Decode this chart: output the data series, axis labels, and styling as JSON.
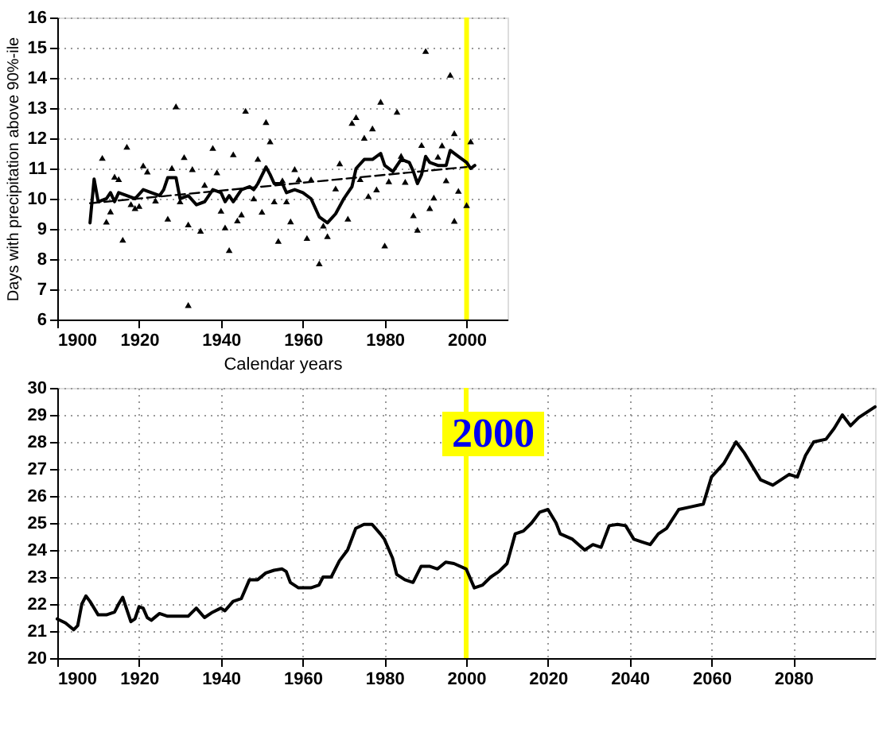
{
  "chart_data": [
    {
      "type": "scatter",
      "xlabel": "Calendar years",
      "ylabel": "Days with precipitation above 90%-ile",
      "xlim": [
        1900,
        2010
      ],
      "ylim": [
        6,
        16
      ],
      "xticks": [
        1900,
        1920,
        1940,
        1960,
        1980,
        2000
      ],
      "yticks": [
        6,
        7,
        8,
        9,
        10,
        11,
        12,
        13,
        14,
        15,
        16
      ],
      "grid": "y",
      "ref_lines": [
        {
          "axis": "x",
          "value": 2000,
          "color": "#ffff00"
        }
      ],
      "series": [
        {
          "marker": "triangle",
          "color": "#000000",
          "x": [
            1911,
            1912,
            1913,
            1914,
            1915,
            1916,
            1917,
            1918,
            1919,
            1920,
            1921,
            1922,
            1924,
            1927,
            1928,
            1929,
            1930,
            1931,
            1932,
            1932,
            1933,
            1935,
            1936,
            1938,
            1939,
            1940,
            1941,
            1942,
            1943,
            1944,
            1945,
            1946,
            1948,
            1949,
            1950,
            1951,
            1952,
            1953,
            1954,
            1955,
            1956,
            1957,
            1958,
            1959,
            1961,
            1962,
            1964,
            1965,
            1966,
            1968,
            1969,
            1971,
            1972,
            1973,
            1974,
            1975,
            1976,
            1977,
            1978,
            1979,
            1980,
            1981,
            1983,
            1984,
            1985,
            1987,
            1988,
            1989,
            1990,
            1991,
            1992,
            1993,
            1994,
            1995,
            1996,
            1997,
            1997,
            1998,
            2000,
            2001
          ],
          "values": [
            11.35,
            9.24,
            9.58,
            10.73,
            10.65,
            8.64,
            11.72,
            9.82,
            9.69,
            9.76,
            11.1,
            10.9,
            9.94,
            9.34,
            11.02,
            13.06,
            9.91,
            11.38,
            6.48,
            9.15,
            10.98,
            8.94,
            10.46,
            11.68,
            10.87,
            9.6,
            9.05,
            8.3,
            11.47,
            9.28,
            9.48,
            12.91,
            10.01,
            11.32,
            9.57,
            12.54,
            11.9,
            9.91,
            8.6,
            10.61,
            9.91,
            9.25,
            10.98,
            10.64,
            8.7,
            10.64,
            7.86,
            9.11,
            8.76,
            10.34,
            11.17,
            9.34,
            12.51,
            12.7,
            10.65,
            12.02,
            10.09,
            12.33,
            10.31,
            13.21,
            8.45,
            10.58,
            12.88,
            11.42,
            10.56,
            9.45,
            8.97,
            11.78,
            14.89,
            9.69,
            10.04,
            11.39,
            11.77,
            10.61,
            14.1,
            9.27,
            12.17,
            10.26,
            9.79,
            11.9
          ]
        },
        {
          "type": "line",
          "marker": "none",
          "line_style": "solid",
          "color": "#000000",
          "x": [
            1908,
            1909,
            1910,
            1912,
            1913,
            1914,
            1915,
            1917,
            1919,
            1921,
            1923,
            1925,
            1926,
            1927,
            1929,
            1930,
            1932,
            1934,
            1936,
            1938,
            1940,
            1941,
            1942,
            1943,
            1945,
            1947,
            1948,
            1949,
            1951,
            1952,
            1953,
            1955,
            1956,
            1958,
            1960,
            1962,
            1964,
            1966,
            1968,
            1970,
            1972,
            1973,
            1975,
            1977,
            1979,
            1980,
            1982,
            1984,
            1986,
            1987,
            1988,
            1989,
            1990,
            1991,
            1993,
            1995,
            1996,
            1998,
            1999,
            2000,
            2001,
            2002
          ],
          "values": [
            9.2,
            10.65,
            9.9,
            10.0,
            10.2,
            9.9,
            10.2,
            10.1,
            10.0,
            10.3,
            10.2,
            10.1,
            10.3,
            10.7,
            10.7,
            10.0,
            10.1,
            9.8,
            9.9,
            10.3,
            10.2,
            9.9,
            10.1,
            9.9,
            10.3,
            10.4,
            10.3,
            10.5,
            11.05,
            10.8,
            10.5,
            10.5,
            10.2,
            10.3,
            10.2,
            10.0,
            9.4,
            9.2,
            9.5,
            10.0,
            10.4,
            11.0,
            11.3,
            11.3,
            11.5,
            11.1,
            10.9,
            11.3,
            11.2,
            10.9,
            10.5,
            10.8,
            11.4,
            11.2,
            11.1,
            11.1,
            11.6,
            11.4,
            11.3,
            11.2,
            11.0,
            11.1
          ]
        },
        {
          "type": "line",
          "marker": "none",
          "line_style": "dashed",
          "color": "#000000",
          "x": [
            1908,
            2000
          ],
          "values": [
            9.85,
            11.05
          ]
        }
      ]
    },
    {
      "type": "line",
      "xlim": [
        1900,
        2100
      ],
      "ylim": [
        20,
        30
      ],
      "xticks": [
        1900,
        1920,
        1940,
        1960,
        1980,
        2000,
        2020,
        2040,
        2060,
        2080
      ],
      "yticks": [
        20,
        21,
        22,
        23,
        24,
        25,
        26,
        27,
        28,
        29,
        30
      ],
      "grid": true,
      "ref_lines": [
        {
          "axis": "x",
          "value": 2000,
          "label": "2000",
          "color": "#ffff00"
        }
      ],
      "series": [
        {
          "marker": "none",
          "line_style": "solid",
          "color": "#000000",
          "x": [
            1900,
            1902,
            1904,
            1905,
            1906,
            1907,
            1908,
            1910,
            1912,
            1914,
            1915,
            1916,
            1917,
            1918,
            1919,
            1920,
            1921,
            1922,
            1923,
            1925,
            1927,
            1930,
            1932,
            1934,
            1936,
            1938,
            1940,
            1941,
            1943,
            1945,
            1947,
            1949,
            1951,
            1953,
            1955,
            1956,
            1957,
            1959,
            1962,
            1964,
            1965,
            1967,
            1969,
            1971,
            1973,
            1975,
            1977,
            1979,
            1980,
            1982,
            1983,
            1985,
            1987,
            1989,
            1991,
            1993,
            1995,
            1997,
            2000,
            2002,
            2004,
            2006,
            2008,
            2010,
            2012,
            2014,
            2016,
            2018,
            2020,
            2022,
            2023,
            2026,
            2029,
            2031,
            2033,
            2035,
            2037,
            2039,
            2041,
            2043,
            2045,
            2047,
            2049,
            2052,
            2055,
            2058,
            2060,
            2063,
            2066,
            2068,
            2070,
            2072,
            2075,
            2077,
            2079,
            2081,
            2083,
            2085,
            2088,
            2090,
            2092,
            2094,
            2096,
            2098,
            2100
          ],
          "values": [
            21.45,
            21.3,
            21.05,
            21.2,
            22.0,
            22.3,
            22.1,
            21.6,
            21.6,
            21.7,
            22.0,
            22.25,
            21.8,
            21.35,
            21.45,
            21.9,
            21.85,
            21.5,
            21.4,
            21.65,
            21.55,
            21.55,
            21.55,
            21.85,
            21.5,
            21.7,
            21.85,
            21.75,
            22.1,
            22.2,
            22.9,
            22.9,
            23.15,
            23.25,
            23.3,
            23.2,
            22.8,
            22.6,
            22.6,
            22.7,
            23.0,
            23.0,
            23.6,
            24.0,
            24.8,
            24.95,
            24.95,
            24.6,
            24.4,
            23.7,
            23.1,
            22.9,
            22.8,
            23.4,
            23.4,
            23.3,
            23.55,
            23.5,
            23.3,
            22.6,
            22.7,
            23.0,
            23.2,
            23.5,
            24.6,
            24.7,
            25.0,
            25.4,
            25.5,
            25.0,
            24.6,
            24.4,
            24.0,
            24.2,
            24.1,
            24.9,
            24.95,
            24.9,
            24.4,
            24.3,
            24.2,
            24.6,
            24.8,
            25.5,
            25.6,
            25.7,
            26.7,
            27.2,
            28.0,
            27.6,
            27.1,
            26.6,
            26.4,
            26.6,
            26.8,
            26.7,
            27.5,
            28.0,
            28.1,
            28.5,
            29.0,
            28.6,
            28.9,
            29.1,
            29.3
          ]
        }
      ]
    }
  ]
}
